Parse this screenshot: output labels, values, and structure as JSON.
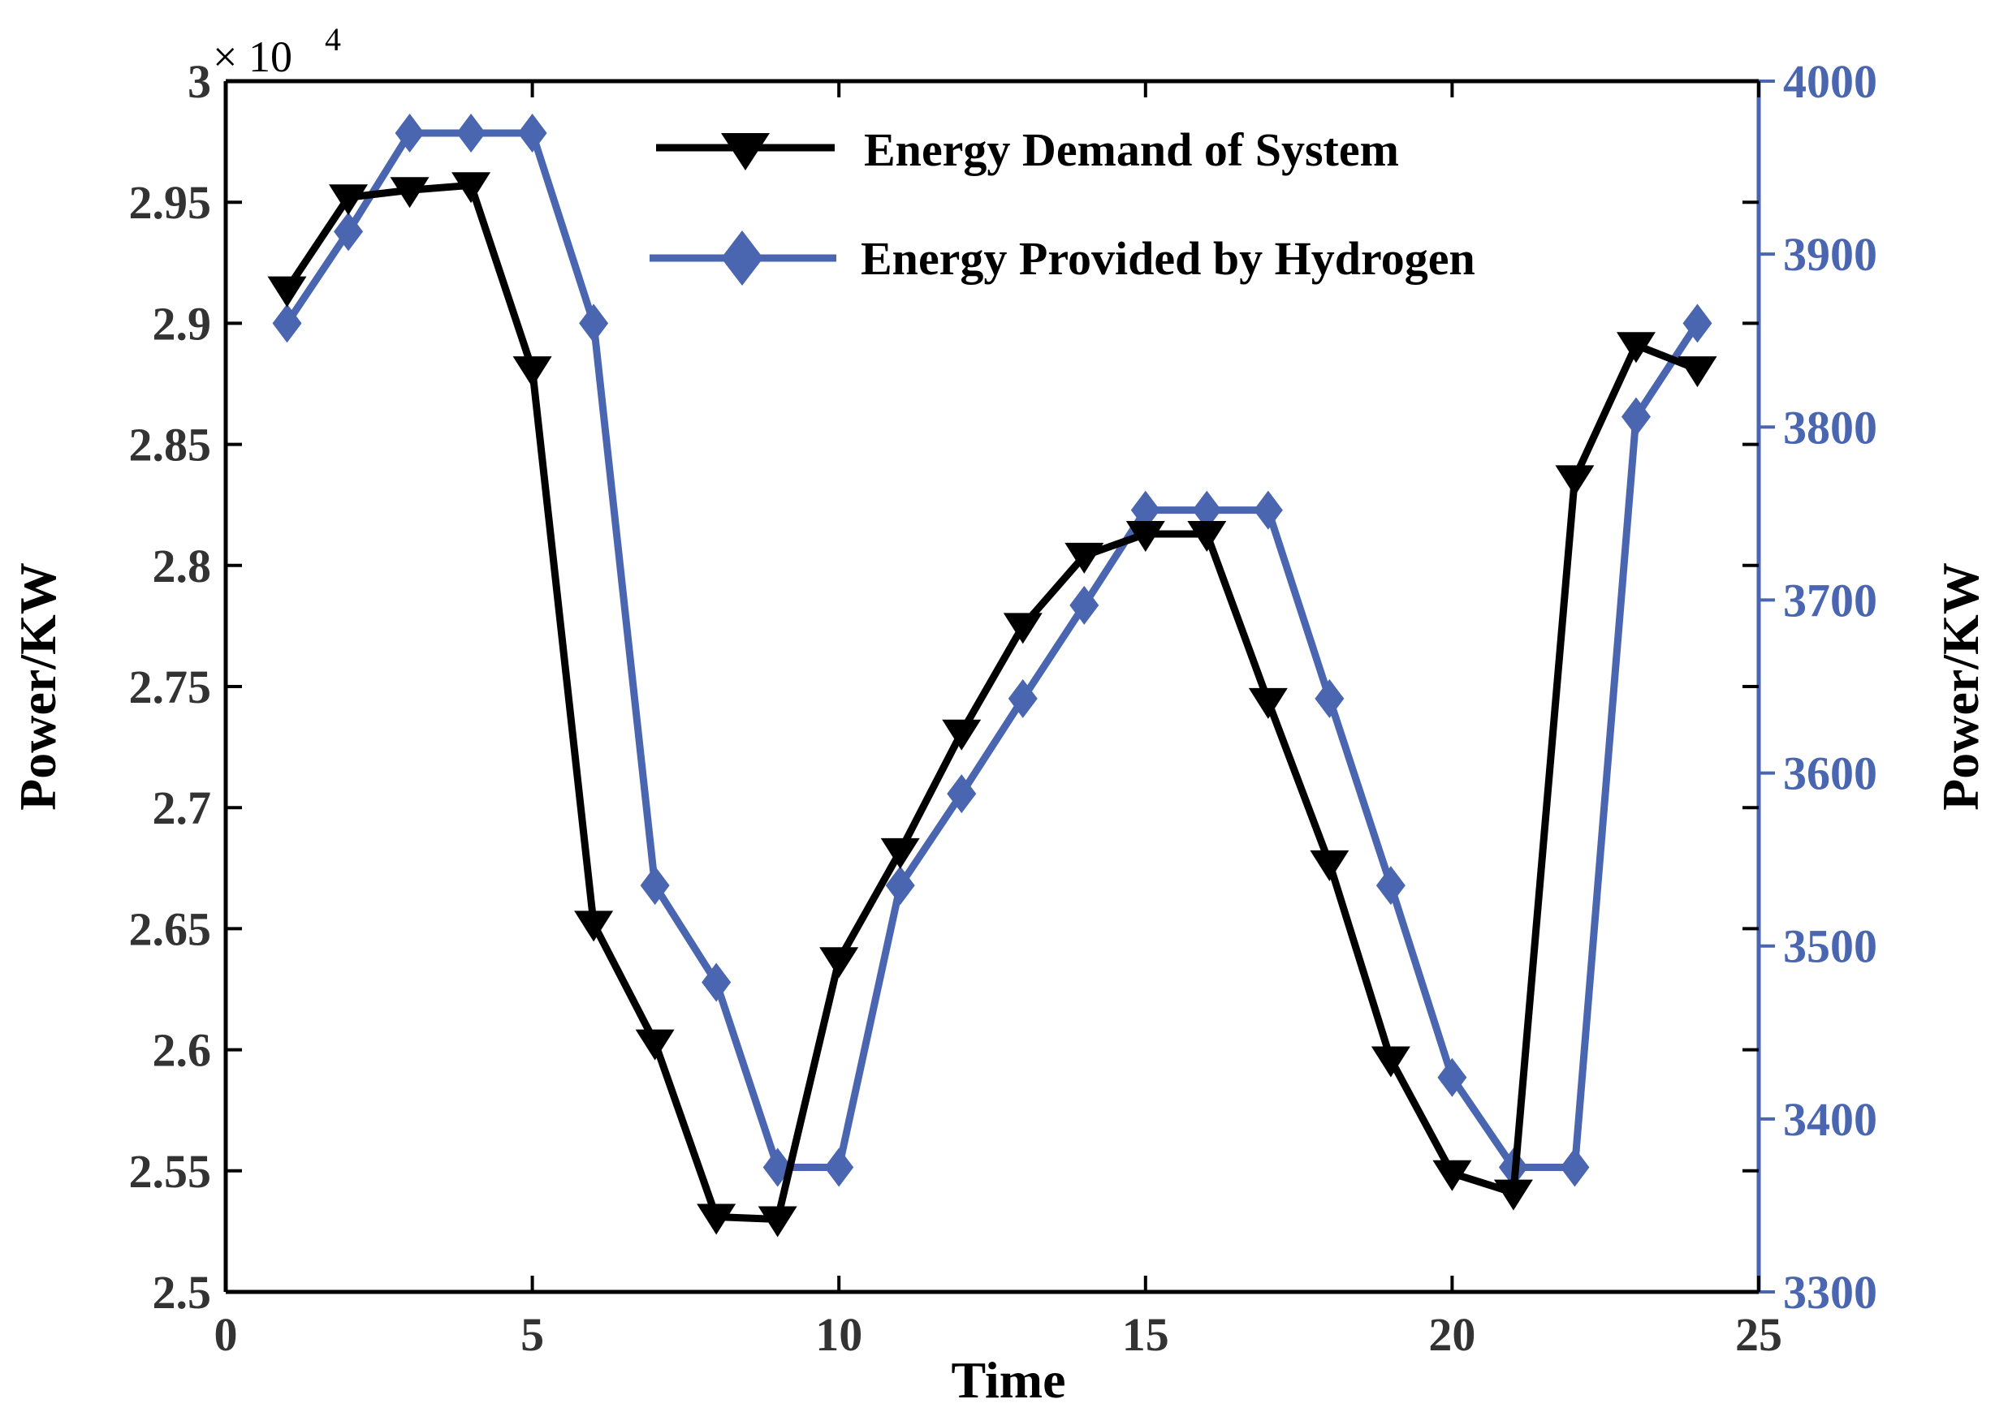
{
  "chart_data": {
    "type": "line",
    "title": "",
    "xlabel": "Time",
    "ylabel_left": "Power/KW",
    "ylabel_right": "Power/KW",
    "left_multiplier": "× 10",
    "left_multiplier_exp": "4",
    "xlim": [
      0,
      25
    ],
    "ylim_left": [
      2.5,
      3.0
    ],
    "ylim_right": [
      3300,
      4000
    ],
    "x_ticks": [
      "0",
      "5",
      "10",
      "15",
      "20",
      "25"
    ],
    "y_left_ticks": [
      "2.5",
      "2.55",
      "2.6",
      "2.65",
      "2.7",
      "2.75",
      "2.8",
      "2.85",
      "2.9",
      "2.95",
      "3"
    ],
    "y_right_ticks": [
      "3300",
      "3400",
      "3500",
      "3600",
      "3700",
      "3800",
      "3900",
      "4000"
    ],
    "legend_position": "top-right",
    "colors": {
      "demand": "#000000",
      "hydrogen": "#4a66b0",
      "right_axis": "#4a66b0"
    },
    "x": [
      1,
      2,
      3,
      4,
      5,
      6,
      7,
      8,
      9,
      10,
      11,
      12,
      13,
      14,
      15,
      16,
      17,
      18,
      19,
      20,
      21,
      22,
      23,
      24
    ],
    "series": [
      {
        "name": "Energy Demand of System",
        "axis": "left",
        "marker": "triangle-down",
        "values": [
          2.914,
          2.952,
          2.955,
          2.957,
          2.881,
          2.652,
          2.603,
          2.531,
          2.53,
          2.637,
          2.682,
          2.731,
          2.775,
          2.804,
          2.813,
          2.813,
          2.744,
          2.677,
          2.596,
          2.549,
          2.541,
          2.836,
          2.891,
          2.881
        ]
      },
      {
        "name": "Energy Provided by Hydrogen",
        "axis": "right",
        "marker": "diamond",
        "values": [
          3860,
          3913,
          3970,
          3970,
          3970,
          3860,
          3535,
          3479,
          3372,
          3372,
          3535,
          3588,
          3643,
          3697,
          3752,
          3752,
          3752,
          3643,
          3535,
          3424,
          3372,
          3372,
          3806,
          3860
        ]
      }
    ]
  }
}
